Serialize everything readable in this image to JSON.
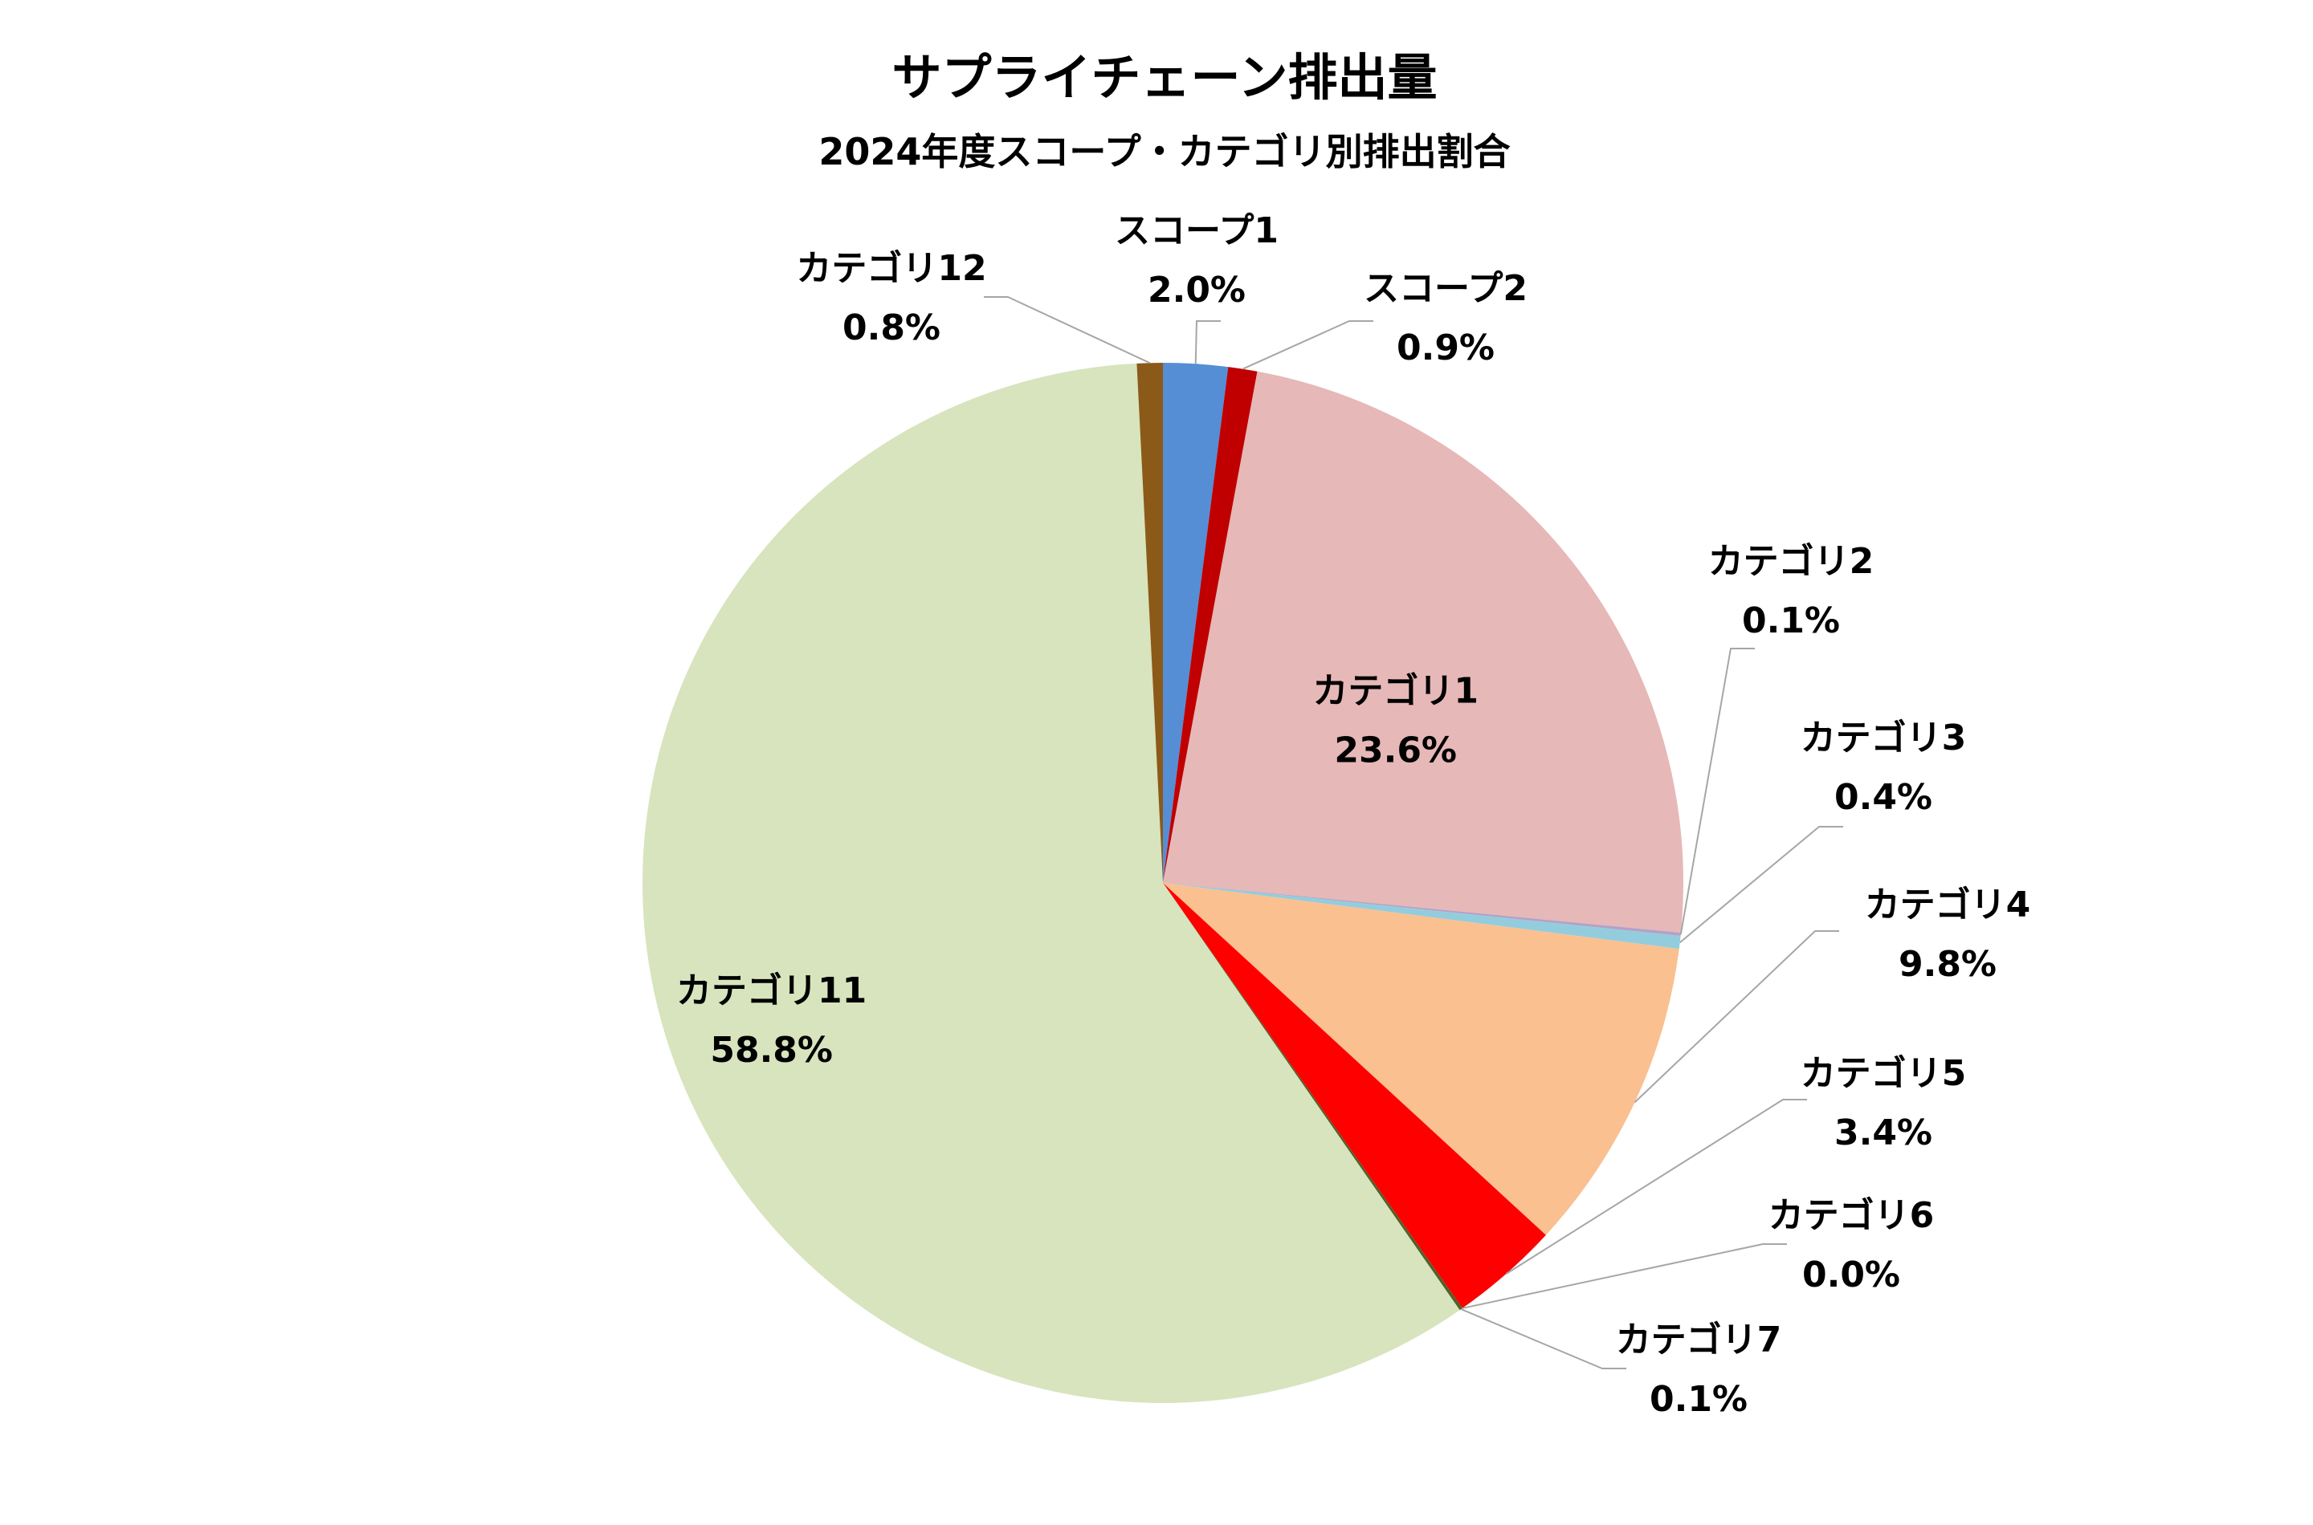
{
  "chart_data": {
    "type": "pie",
    "title": "サプライチェーン排出量",
    "subtitle": "2024年度スコープ・カテゴリ別排出割合",
    "start_angle_deg": 0,
    "direction": "clockwise",
    "slices": [
      {
        "name": "スコープ1",
        "value": 2.0,
        "label": "2.0%",
        "color": "#558ed5"
      },
      {
        "name": "スコープ2",
        "value": 0.9,
        "label": "0.9%",
        "color": "#c00000"
      },
      {
        "name": "カテゴリ1",
        "value": 23.6,
        "label": "23.6%",
        "color": "#e6b8b7"
      },
      {
        "name": "カテゴリ2",
        "value": 0.1,
        "label": "0.1%",
        "color": "#b3a2c7"
      },
      {
        "name": "カテゴリ3",
        "value": 0.4,
        "label": "0.4%",
        "color": "#93cddd"
      },
      {
        "name": "カテゴリ4",
        "value": 9.8,
        "label": "9.8%",
        "color": "#fac090"
      },
      {
        "name": "カテゴリ5",
        "value": 3.4,
        "label": "3.4%",
        "color": "#ff0000"
      },
      {
        "name": "カテゴリ6",
        "value": 0.0,
        "label": "0.0%",
        "color": "#7f7f7f"
      },
      {
        "name": "カテゴリ7",
        "value": 0.1,
        "label": "0.1%",
        "color": "#4f6228"
      },
      {
        "name": "カテゴリ11",
        "value": 58.8,
        "label": "58.8%",
        "color": "#d7e4bd"
      },
      {
        "name": "カテゴリ12",
        "value": 0.8,
        "label": "0.8%",
        "color": "#8b5a18"
      }
    ]
  }
}
